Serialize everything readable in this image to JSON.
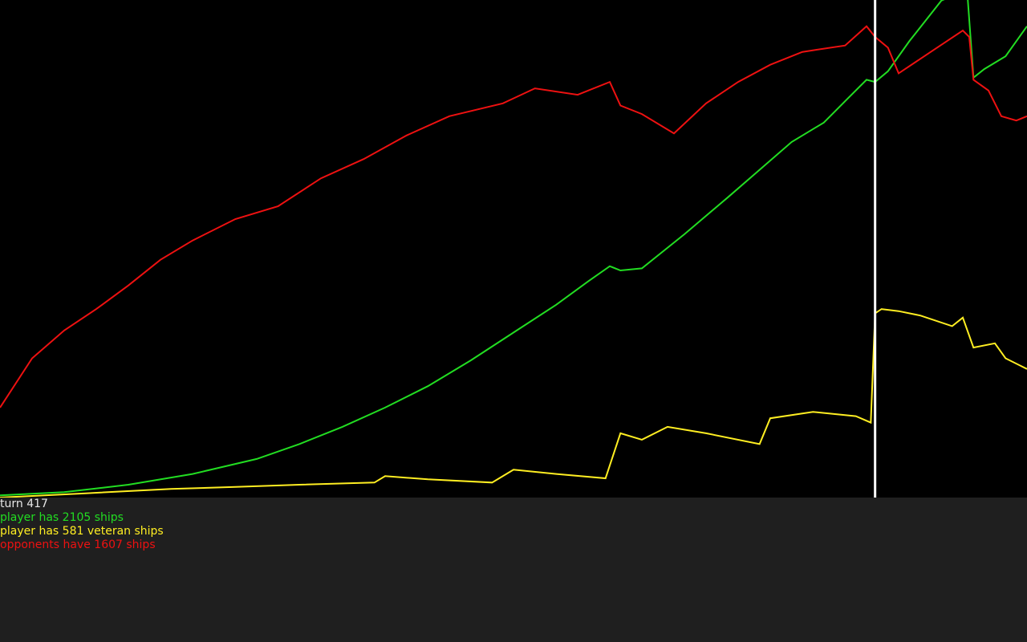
{
  "chart_data": {
    "type": "line",
    "turns": 417,
    "xlim": [
      0,
      480
    ],
    "ylim": [
      0,
      2300
    ],
    "grid": false,
    "legend": "none",
    "marker_turn": 409,
    "marker_color": "#ffffff",
    "series": [
      {
        "key": "player_ships",
        "color": "#22dd22",
        "points": [
          [
            0,
            10
          ],
          [
            30,
            25
          ],
          [
            60,
            60
          ],
          [
            90,
            110
          ],
          [
            120,
            180
          ],
          [
            140,
            250
          ],
          [
            160,
            330
          ],
          [
            180,
            420
          ],
          [
            200,
            520
          ],
          [
            220,
            640
          ],
          [
            240,
            770
          ],
          [
            260,
            900
          ],
          [
            275,
            1010
          ],
          [
            285,
            1080
          ],
          [
            290,
            1060
          ],
          [
            300,
            1070
          ],
          [
            320,
            1230
          ],
          [
            340,
            1400
          ],
          [
            355,
            1530
          ],
          [
            370,
            1660
          ],
          [
            385,
            1750
          ],
          [
            395,
            1850
          ],
          [
            405,
            1950
          ],
          [
            409,
            1940
          ],
          [
            415,
            1990
          ],
          [
            425,
            2130
          ],
          [
            440,
            2320
          ],
          [
            452,
            2370
          ],
          [
            455,
            1960
          ],
          [
            460,
            2000
          ],
          [
            470,
            2060
          ],
          [
            480,
            2200
          ]
        ]
      },
      {
        "key": "veteran_ships",
        "color": "#ffee22",
        "points": [
          [
            0,
            0
          ],
          [
            40,
            20
          ],
          [
            80,
            40
          ],
          [
            110,
            50
          ],
          [
            140,
            60
          ],
          [
            175,
            70
          ],
          [
            180,
            100
          ],
          [
            200,
            85
          ],
          [
            230,
            70
          ],
          [
            240,
            130
          ],
          [
            260,
            110
          ],
          [
            283,
            90
          ],
          [
            290,
            300
          ],
          [
            300,
            270
          ],
          [
            312,
            330
          ],
          [
            330,
            300
          ],
          [
            355,
            250
          ],
          [
            360,
            370
          ],
          [
            380,
            400
          ],
          [
            400,
            380
          ],
          [
            407,
            350
          ],
          [
            409,
            860
          ],
          [
            412,
            880
          ],
          [
            420,
            870
          ],
          [
            430,
            850
          ],
          [
            445,
            800
          ],
          [
            450,
            840
          ],
          [
            455,
            700
          ],
          [
            465,
            720
          ],
          [
            470,
            650
          ],
          [
            480,
            600
          ]
        ]
      },
      {
        "key": "opponent_ships",
        "color": "#ee1111",
        "points": [
          [
            0,
            420
          ],
          [
            15,
            650
          ],
          [
            30,
            780
          ],
          [
            45,
            880
          ],
          [
            60,
            990
          ],
          [
            75,
            1110
          ],
          [
            90,
            1200
          ],
          [
            110,
            1300
          ],
          [
            130,
            1360
          ],
          [
            150,
            1490
          ],
          [
            170,
            1580
          ],
          [
            190,
            1690
          ],
          [
            210,
            1780
          ],
          [
            235,
            1840
          ],
          [
            250,
            1910
          ],
          [
            270,
            1880
          ],
          [
            285,
            1940
          ],
          [
            290,
            1830
          ],
          [
            300,
            1790
          ],
          [
            315,
            1700
          ],
          [
            330,
            1840
          ],
          [
            345,
            1940
          ],
          [
            360,
            2020
          ],
          [
            375,
            2080
          ],
          [
            395,
            2110
          ],
          [
            405,
            2200
          ],
          [
            409,
            2150
          ],
          [
            415,
            2100
          ],
          [
            420,
            1980
          ],
          [
            435,
            2080
          ],
          [
            450,
            2180
          ],
          [
            453,
            2150
          ],
          [
            455,
            1950
          ],
          [
            462,
            1900
          ],
          [
            468,
            1780
          ],
          [
            475,
            1760
          ],
          [
            480,
            1780
          ]
        ]
      }
    ]
  },
  "stats": {
    "turn_label": "turn 417",
    "player_ships_label": "player has 2105 ships",
    "veteran_ships_label": "player has 581 veteran ships",
    "opponent_ships_label": "opponents have 1607 ships"
  },
  "colors": {
    "turn": "#e8e8e8",
    "player": "#22dd22",
    "veteran": "#ffee22",
    "opponent": "#ee1111",
    "background_plot": "#000000",
    "background_panel": "#1f1f1f"
  }
}
